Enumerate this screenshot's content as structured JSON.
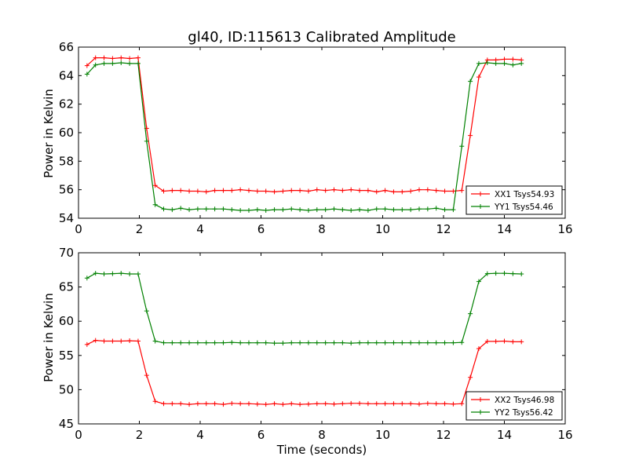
{
  "chart_data": [
    {
      "type": "line",
      "title": "gl40, ID:115613 Calibrated Amplitude",
      "xlabel": "",
      "ylabel": "Power in Kelvin",
      "xlim": [
        0,
        16
      ],
      "ylim": [
        54,
        66
      ],
      "xticks": [
        0,
        2,
        4,
        6,
        8,
        10,
        12,
        14,
        16
      ],
      "yticks": [
        54,
        56,
        58,
        60,
        62,
        64,
        66
      ],
      "grid": false,
      "legend_position": "lower-right",
      "x": [
        0.28,
        0.56,
        0.84,
        1.12,
        1.4,
        1.68,
        1.96,
        2.24,
        2.52,
        2.8,
        3.08,
        3.36,
        3.64,
        3.92,
        4.2,
        4.48,
        4.76,
        5.04,
        5.32,
        5.6,
        5.88,
        6.16,
        6.44,
        6.72,
        7.0,
        7.28,
        7.56,
        7.84,
        8.12,
        8.4,
        8.68,
        8.96,
        9.24,
        9.52,
        9.8,
        10.08,
        10.36,
        10.64,
        10.92,
        11.2,
        11.48,
        11.76,
        12.04,
        12.32,
        12.6,
        12.88,
        13.16,
        13.44,
        13.72,
        14.0,
        14.28,
        14.56
      ],
      "series": [
        {
          "name": "XX1 Tsys54.93",
          "color": "#ff0000",
          "values": [
            64.7,
            65.25,
            65.25,
            65.2,
            65.25,
            65.2,
            65.25,
            60.3,
            56.3,
            55.9,
            55.95,
            55.95,
            55.9,
            55.9,
            55.85,
            55.95,
            55.95,
            55.95,
            56.0,
            55.95,
            55.9,
            55.9,
            55.85,
            55.9,
            55.95,
            55.95,
            55.9,
            56.0,
            55.95,
            56.0,
            55.95,
            56.0,
            55.95,
            55.95,
            55.85,
            55.95,
            55.85,
            55.85,
            55.9,
            56.0,
            56.0,
            55.95,
            55.9,
            55.9,
            55.95,
            59.8,
            63.9,
            65.1,
            65.1,
            65.15,
            65.15,
            65.1
          ]
        },
        {
          "name": "YY1 Tsys54.46",
          "color": "#008000",
          "values": [
            64.1,
            64.75,
            64.85,
            64.85,
            64.9,
            64.85,
            64.85,
            59.4,
            54.95,
            54.65,
            54.6,
            54.7,
            54.6,
            54.65,
            54.65,
            54.65,
            54.65,
            54.6,
            54.55,
            54.55,
            54.6,
            54.55,
            54.6,
            54.6,
            54.65,
            54.6,
            54.55,
            54.6,
            54.6,
            54.65,
            54.6,
            54.55,
            54.6,
            54.55,
            54.65,
            54.65,
            54.6,
            54.6,
            54.6,
            54.65,
            54.65,
            54.7,
            54.6,
            54.6,
            59.05,
            63.6,
            64.85,
            64.9,
            64.85,
            64.85,
            64.75,
            64.85
          ]
        }
      ]
    },
    {
      "type": "line",
      "title": "",
      "xlabel": "Time (seconds)",
      "ylabel": "Power in Kelvin",
      "xlim": [
        0,
        16
      ],
      "ylim": [
        45,
        70
      ],
      "xticks": [
        0,
        2,
        4,
        6,
        8,
        10,
        12,
        14,
        16
      ],
      "yticks": [
        45,
        50,
        55,
        60,
        65,
        70
      ],
      "grid": false,
      "legend_position": "lower-right",
      "x": [
        0.28,
        0.56,
        0.84,
        1.12,
        1.4,
        1.68,
        1.96,
        2.24,
        2.52,
        2.8,
        3.08,
        3.36,
        3.64,
        3.92,
        4.2,
        4.48,
        4.76,
        5.04,
        5.32,
        5.6,
        5.88,
        6.16,
        6.44,
        6.72,
        7.0,
        7.28,
        7.56,
        7.84,
        8.12,
        8.4,
        8.68,
        8.96,
        9.24,
        9.52,
        9.8,
        10.08,
        10.36,
        10.64,
        10.92,
        11.2,
        11.48,
        11.76,
        12.04,
        12.32,
        12.6,
        12.88,
        13.16,
        13.44,
        13.72,
        14.0,
        14.28,
        14.56
      ],
      "series": [
        {
          "name": "XX2 Tsys46.98",
          "color": "#ff0000",
          "values": [
            56.6,
            57.2,
            57.1,
            57.1,
            57.1,
            57.15,
            57.1,
            52.1,
            48.3,
            47.95,
            47.95,
            47.95,
            47.85,
            47.95,
            47.95,
            47.95,
            47.85,
            48.0,
            47.95,
            47.95,
            47.9,
            47.85,
            47.95,
            47.85,
            47.95,
            47.85,
            47.9,
            47.95,
            47.95,
            47.9,
            47.95,
            48.0,
            48.0,
            47.95,
            47.95,
            47.95,
            47.95,
            47.95,
            47.95,
            47.9,
            48.0,
            47.95,
            47.95,
            47.9,
            47.95,
            51.8,
            56.0,
            57.05,
            57.05,
            57.1,
            57.0,
            57.0
          ]
        },
        {
          "name": "YY2 Tsys56.42",
          "color": "#008000",
          "values": [
            66.3,
            67.0,
            66.9,
            66.95,
            67.0,
            66.9,
            66.9,
            61.5,
            57.1,
            56.85,
            56.85,
            56.85,
            56.85,
            56.85,
            56.85,
            56.85,
            56.85,
            56.9,
            56.85,
            56.85,
            56.85,
            56.85,
            56.8,
            56.8,
            56.85,
            56.85,
            56.85,
            56.85,
            56.85,
            56.85,
            56.85,
            56.8,
            56.85,
            56.85,
            56.85,
            56.85,
            56.85,
            56.85,
            56.85,
            56.85,
            56.85,
            56.85,
            56.85,
            56.85,
            56.9,
            61.1,
            65.8,
            66.95,
            67.0,
            67.0,
            66.95,
            66.9
          ]
        }
      ]
    }
  ]
}
